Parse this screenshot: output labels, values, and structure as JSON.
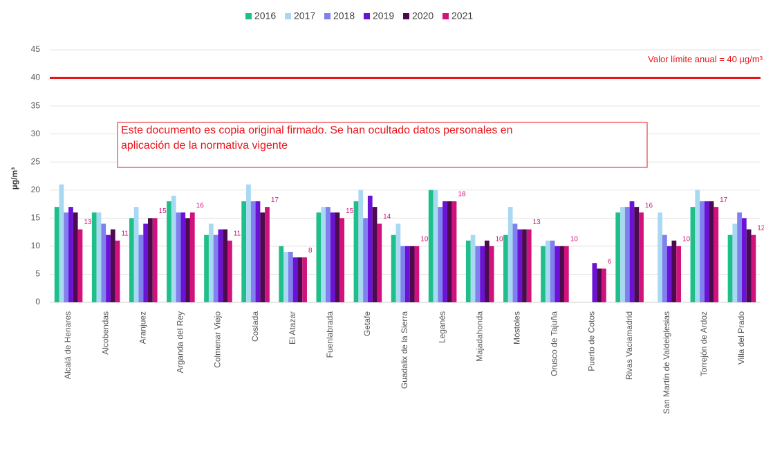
{
  "chart_data": {
    "type": "bar",
    "y_label": "µg/m³",
    "categories": [
      "Alcalá de Henares",
      "Alcobendas",
      "Aranjuez",
      "Arganda del Rey",
      "Colmenar Viejo",
      "Coslada",
      "El Atazar",
      "Fuenlabrada",
      "Getafe",
      "Guadalix de la Sierra",
      "Leganés",
      "Majadahonda",
      "Móstoles",
      "Orusco de Tajuña",
      "Puerto de Cotos",
      "Rivas Vaciamadrid",
      "San Martín de Valdeiglesias",
      "Torrejón de Ardoz",
      "Villa del Prado"
    ],
    "series": [
      {
        "name": "2016",
        "color": "#1fbf8a",
        "values": [
          17,
          16,
          15,
          18,
          12,
          18,
          10,
          16,
          18,
          12,
          20,
          11,
          12,
          10,
          null,
          16,
          null,
          17,
          12
        ]
      },
      {
        "name": "2017",
        "color": "#a9d9f2",
        "values": [
          21,
          16,
          17,
          19,
          14,
          21,
          9,
          17,
          20,
          14,
          20,
          12,
          17,
          11,
          null,
          17,
          16,
          20,
          14
        ]
      },
      {
        "name": "2018",
        "color": "#8080ee",
        "values": [
          16,
          14,
          12,
          16,
          12,
          18,
          9,
          17,
          15,
          10,
          17,
          10,
          14,
          11,
          null,
          17,
          12,
          18,
          16
        ]
      },
      {
        "name": "2019",
        "color": "#6a12d6",
        "values": [
          17,
          12,
          14,
          16,
          13,
          18,
          8,
          16,
          19,
          10,
          18,
          10,
          13,
          10,
          7,
          18,
          10,
          18,
          15
        ]
      },
      {
        "name": "2020",
        "color": "#4d0a4f",
        "values": [
          16,
          13,
          15,
          15,
          13,
          16,
          8,
          16,
          17,
          10,
          18,
          11,
          13,
          10,
          6,
          17,
          11,
          18,
          13
        ]
      },
      {
        "name": "2021",
        "color": "#d1127c",
        "values": [
          13,
          11,
          15,
          16,
          11,
          17,
          8,
          15,
          14,
          10,
          18,
          10,
          13,
          10,
          6,
          16,
          10,
          17,
          12
        ],
        "data_labels": true
      }
    ],
    "ylim": [
      0,
      45
    ],
    "yticks": [
      0,
      5,
      10,
      15,
      20,
      25,
      30,
      35,
      40,
      45
    ],
    "grid": true,
    "reference_line": {
      "value": 40,
      "label": "Valor límite anual = 40 µg/m³",
      "color": "#e8141a"
    },
    "legend": "top"
  },
  "stamp": [
    "Este documento es copia original firmado. Se han ocultado datos personales en",
    "aplicación de la normativa vigente"
  ]
}
